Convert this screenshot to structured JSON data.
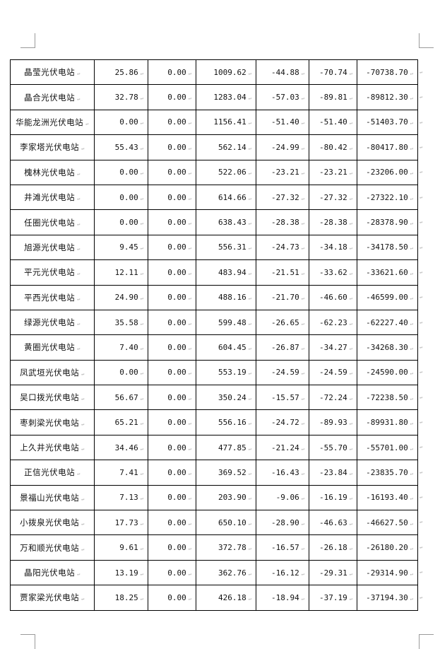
{
  "paragraph_mark": "↵",
  "rows": [
    [
      "晶莹光伏电站",
      "25.86",
      "0.00",
      "1009.62",
      "-44.88",
      "-70.74",
      "-70738.70"
    ],
    [
      "晶合光伏电站",
      "32.78",
      "0.00",
      "1283.04",
      "-57.03",
      "-89.81",
      "-89812.30"
    ],
    [
      "华能龙洲光伏电站",
      "0.00",
      "0.00",
      "1156.41",
      "-51.40",
      "-51.40",
      "-51403.70"
    ],
    [
      "李家塔光伏电站",
      "55.43",
      "0.00",
      "562.14",
      "-24.99",
      "-80.42",
      "-80417.80"
    ],
    [
      "槐林光伏电站",
      "0.00",
      "0.00",
      "522.06",
      "-23.21",
      "-23.21",
      "-23206.00"
    ],
    [
      "井滩光伏电站",
      "0.00",
      "0.00",
      "614.66",
      "-27.32",
      "-27.32",
      "-27322.10"
    ],
    [
      "任圈光伏电站",
      "0.00",
      "0.00",
      "638.43",
      "-28.38",
      "-28.38",
      "-28378.90"
    ],
    [
      "旭源光伏电站",
      "9.45",
      "0.00",
      "556.31",
      "-24.73",
      "-34.18",
      "-34178.50"
    ],
    [
      "平元光伏电站",
      "12.11",
      "0.00",
      "483.94",
      "-21.51",
      "-33.62",
      "-33621.60"
    ],
    [
      "平西光伏电站",
      "24.90",
      "0.00",
      "488.16",
      "-21.70",
      "-46.60",
      "-46599.00"
    ],
    [
      "绿源光伏电站",
      "35.58",
      "0.00",
      "599.48",
      "-26.65",
      "-62.23",
      "-62227.40"
    ],
    [
      "黄圈光伏电站",
      "7.40",
      "0.00",
      "604.45",
      "-26.87",
      "-34.27",
      "-34268.30"
    ],
    [
      "凤武垣光伏电站",
      "0.00",
      "0.00",
      "553.19",
      "-24.59",
      "-24.59",
      "-24590.00"
    ],
    [
      "吴口拨光伏电站",
      "56.67",
      "0.00",
      "350.24",
      "-15.57",
      "-72.24",
      "-72238.50"
    ],
    [
      "枣刺梁光伏电站",
      "65.21",
      "0.00",
      "556.16",
      "-24.72",
      "-89.93",
      "-89931.80"
    ],
    [
      "上久井光伏电站",
      "34.46",
      "0.00",
      "477.85",
      "-21.24",
      "-55.70",
      "-55701.00"
    ],
    [
      "正信光伏电站",
      "7.41",
      "0.00",
      "369.52",
      "-16.43",
      "-23.84",
      "-23835.70"
    ],
    [
      "景福山光伏电站",
      "7.13",
      "0.00",
      "203.90",
      "-9.06",
      "-16.19",
      "-16193.40"
    ],
    [
      "小拨泉光伏电站",
      "17.73",
      "0.00",
      "650.10",
      "-28.90",
      "-46.63",
      "-46627.50"
    ],
    [
      "万和顺光伏电站",
      "9.61",
      "0.00",
      "372.78",
      "-16.57",
      "-26.18",
      "-26180.20"
    ],
    [
      "晶阳光伏电站",
      "13.19",
      "0.00",
      "362.76",
      "-16.12",
      "-29.31",
      "-29314.90"
    ],
    [
      "贾家梁光伏电站",
      "18.25",
      "0.00",
      "426.18",
      "-18.94",
      "-37.19",
      "-37194.30"
    ]
  ]
}
